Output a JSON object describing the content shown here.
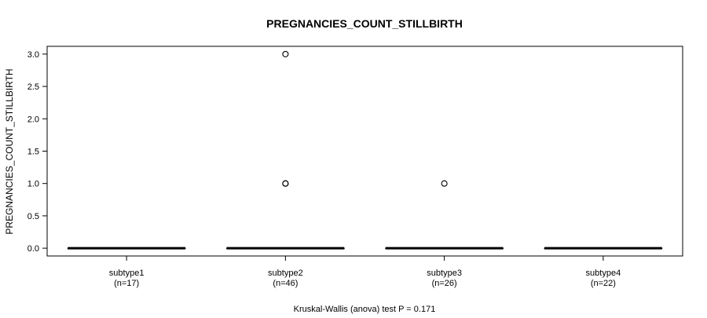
{
  "chart_data": {
    "type": "boxplot",
    "title": "PREGNANCIES_COUNT_STILLBIRTH",
    "ylabel": "PREGNANCIES_COUNT_STILLBIRTH",
    "xlabel": "",
    "ylim": [
      -0.12,
      3.12
    ],
    "yticks": [
      0.0,
      0.5,
      1.0,
      1.5,
      2.0,
      2.5,
      3.0
    ],
    "ytick_labels": [
      "0.0",
      "0.5",
      "1.0",
      "1.5",
      "2.0",
      "2.5",
      "3.0"
    ],
    "grid": false,
    "legend": "none",
    "categories": [
      {
        "name": "subtype1",
        "n_label": "(n=17)",
        "median": 0.0,
        "q1": 0.0,
        "q3": 0.0,
        "whisker_low": 0.0,
        "whisker_high": 0.0,
        "outliers": []
      },
      {
        "name": "subtype2",
        "n_label": "(n=46)",
        "median": 0.0,
        "q1": 0.0,
        "q3": 0.0,
        "whisker_low": 0.0,
        "whisker_high": 0.0,
        "outliers": [
          1.0,
          1.0,
          3.0
        ]
      },
      {
        "name": "subtype3",
        "n_label": "(n=26)",
        "median": 0.0,
        "q1": 0.0,
        "q3": 0.0,
        "whisker_low": 0.0,
        "whisker_high": 0.0,
        "outliers": [
          1.0
        ]
      },
      {
        "name": "subtype4",
        "n_label": "(n=22)",
        "median": 0.0,
        "q1": 0.0,
        "q3": 0.0,
        "whisker_low": 0.0,
        "whisker_high": 0.0,
        "outliers": []
      }
    ],
    "annotation": "Kruskal-Wallis (anova) test P = 0.171"
  }
}
